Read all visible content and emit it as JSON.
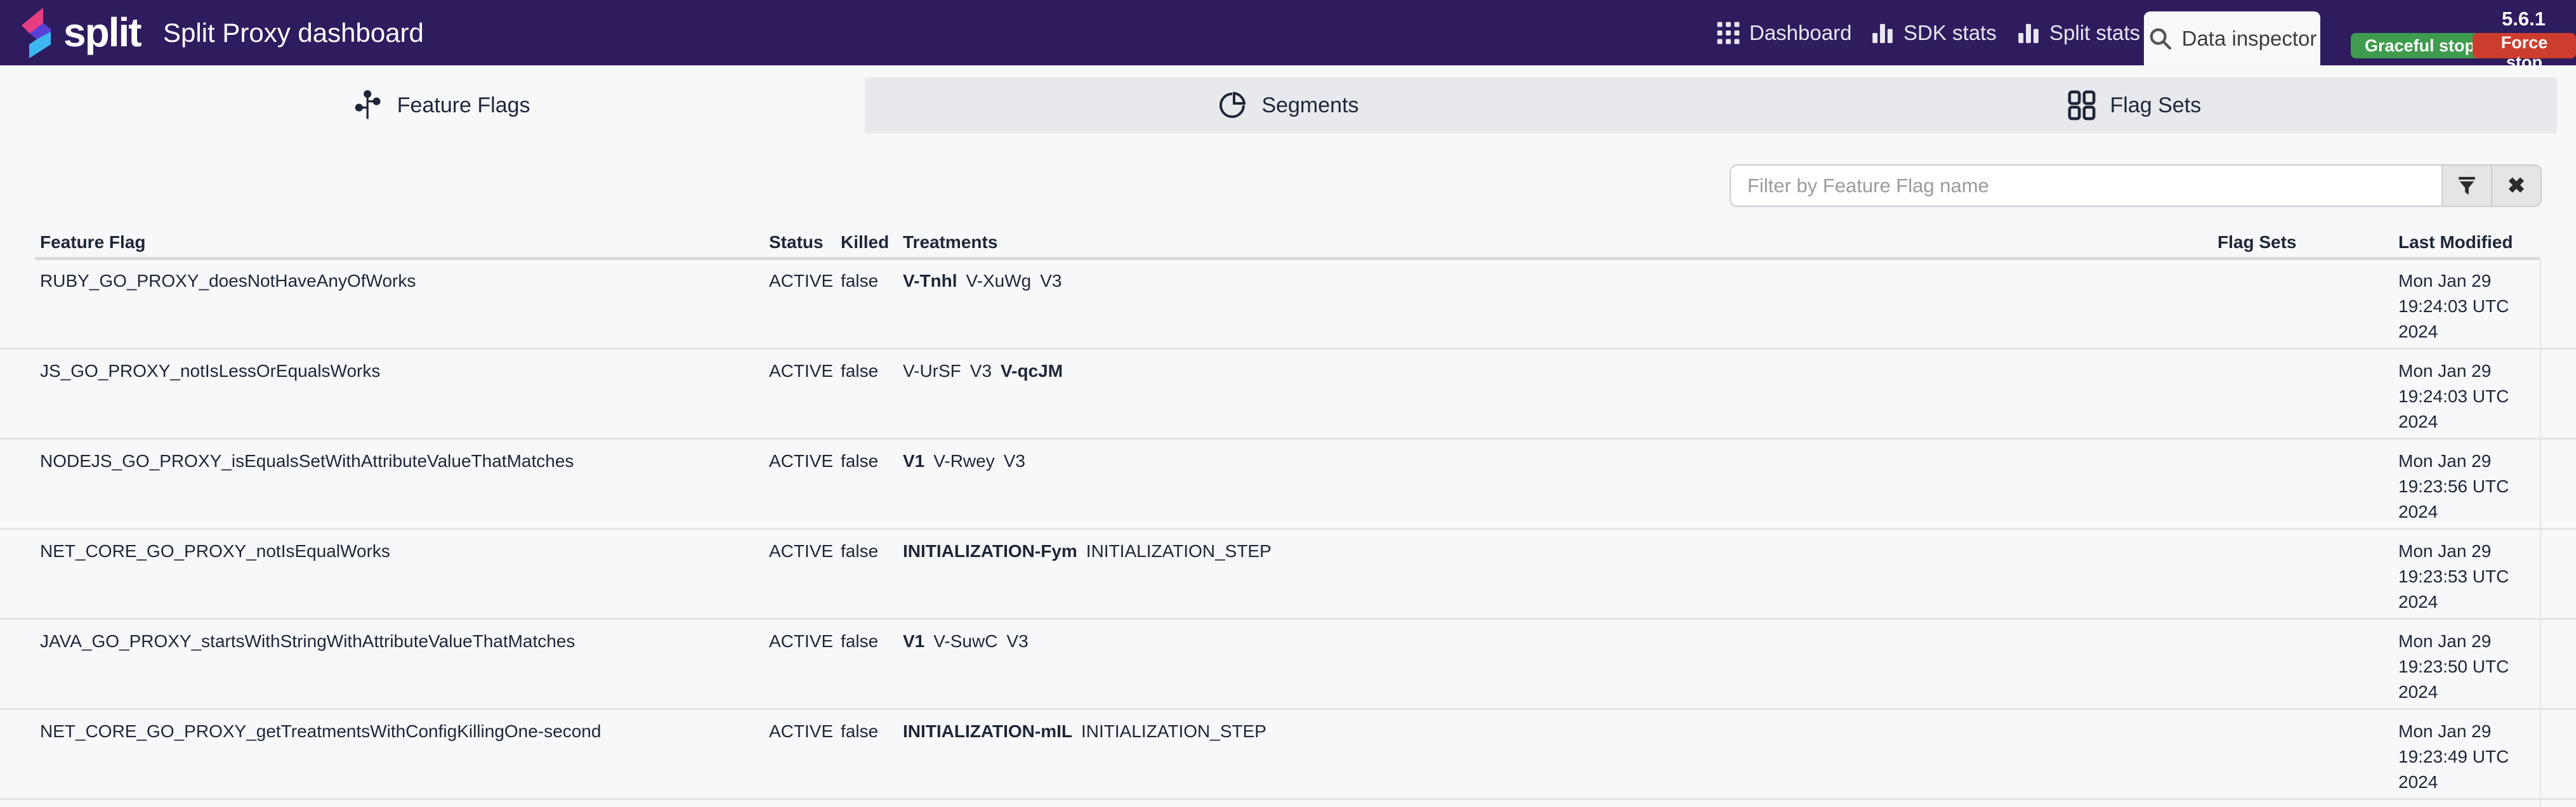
{
  "header": {
    "logo_text": "split",
    "title": "Split Proxy dashboard",
    "version": "5.6.1",
    "nav": [
      {
        "label": "Dashboard",
        "icon": "grid-icon"
      },
      {
        "label": "SDK stats",
        "icon": "bar-chart-icon"
      },
      {
        "label": "Split stats",
        "icon": "bar-chart-icon"
      },
      {
        "label": "Data inspector",
        "icon": "search-icon",
        "active": true
      }
    ],
    "buttons": [
      {
        "label": "Graceful stop",
        "color": "#3f9b4e"
      },
      {
        "label": "Force stop",
        "color": "#cd3d2e"
      }
    ]
  },
  "tabs": [
    {
      "label": "Feature Flags",
      "icon": "branch-icon",
      "selected": true
    },
    {
      "label": "Segments",
      "icon": "pie-chart-icon",
      "selected": false
    },
    {
      "label": "Flag Sets",
      "icon": "grid-2x2-icon",
      "selected": false
    }
  ],
  "filter": {
    "placeholder": "Filter by Feature Flag name"
  },
  "table": {
    "columns": [
      "Feature Flag",
      "Status",
      "Killed",
      "Treatments",
      "Flag Sets",
      "Last Modified"
    ],
    "rows": [
      {
        "name": "RUBY_GO_PROXY_doesNotHaveAnyOfWorks",
        "status": "ACTIVE",
        "killed": "false",
        "treatments": [
          {
            "t": "V-Tnhl",
            "bold": true
          },
          {
            "t": "V-XuWg",
            "bold": false
          },
          {
            "t": "V3",
            "bold": false
          }
        ],
        "flag_sets": "",
        "last_modified": "Mon Jan 29 19:24:03 UTC 2024"
      },
      {
        "name": "JS_GO_PROXY_notIsLessOrEqualsWorks",
        "status": "ACTIVE",
        "killed": "false",
        "treatments": [
          {
            "t": "V-UrSF",
            "bold": false
          },
          {
            "t": "V3",
            "bold": false
          },
          {
            "t": "V-qcJM",
            "bold": true
          }
        ],
        "flag_sets": "",
        "last_modified": "Mon Jan 29 19:24:03 UTC 2024"
      },
      {
        "name": "NODEJS_GO_PROXY_isEqualsSetWithAttributeValueThatMatches",
        "status": "ACTIVE",
        "killed": "false",
        "treatments": [
          {
            "t": "V1",
            "bold": true
          },
          {
            "t": "V-Rwey",
            "bold": false
          },
          {
            "t": "V3",
            "bold": false
          }
        ],
        "flag_sets": "",
        "last_modified": "Mon Jan 29 19:23:56 UTC 2024"
      },
      {
        "name": "NET_CORE_GO_PROXY_notIsEqualWorks",
        "status": "ACTIVE",
        "killed": "false",
        "treatments": [
          {
            "t": "INITIALIZATION-Fym",
            "bold": true
          },
          {
            "t": "INITIALIZATION_STEP",
            "bold": false
          }
        ],
        "flag_sets": "",
        "last_modified": "Mon Jan 29 19:23:53 UTC 2024"
      },
      {
        "name": "JAVA_GO_PROXY_startsWithStringWithAttributeValueThatMatches",
        "status": "ACTIVE",
        "killed": "false",
        "treatments": [
          {
            "t": "V1",
            "bold": true
          },
          {
            "t": "V-SuwC",
            "bold": false
          },
          {
            "t": "V3",
            "bold": false
          }
        ],
        "flag_sets": "",
        "last_modified": "Mon Jan 29 19:23:50 UTC 2024"
      },
      {
        "name": "NET_CORE_GO_PROXY_getTreatmentsWithConfigKillingOne-second",
        "status": "ACTIVE",
        "killed": "false",
        "treatments": [
          {
            "t": "INITIALIZATION-mIL",
            "bold": true
          },
          {
            "t": "INITIALIZATION_STEP",
            "bold": false
          }
        ],
        "flag_sets": "",
        "last_modified": "Mon Jan 29 19:23:49 UTC 2024"
      }
    ]
  },
  "colors": {
    "header_bg": "#2e1c5f",
    "page_bg": "#f7f8fa",
    "tab_inactive_bg": "#e8e9ec",
    "text": "#1e2638",
    "green_button": "#3f9b4e",
    "red_button": "#cd3d2e",
    "row_border": "#e3e4e7"
  }
}
